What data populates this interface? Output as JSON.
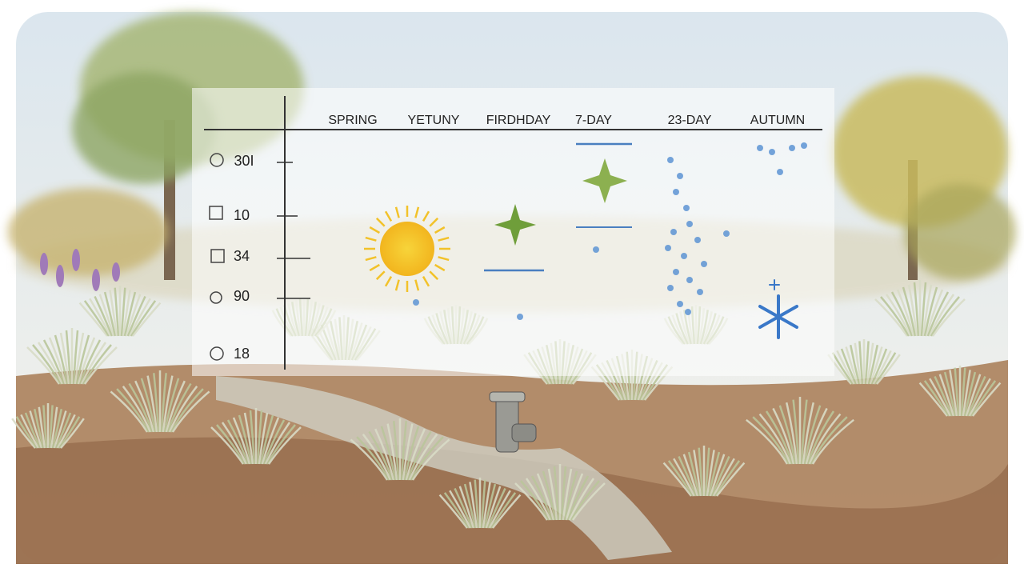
{
  "header": {
    "columns": [
      "SPRING",
      "YETUNY",
      "FIRDHDAY",
      "7-DAY",
      "23-DAY",
      "AUTUMN"
    ]
  },
  "rows": [
    {
      "label": "30I"
    },
    {
      "label": "10"
    },
    {
      "label": "34"
    },
    {
      "label": "90"
    },
    {
      "label": "18"
    }
  ]
}
